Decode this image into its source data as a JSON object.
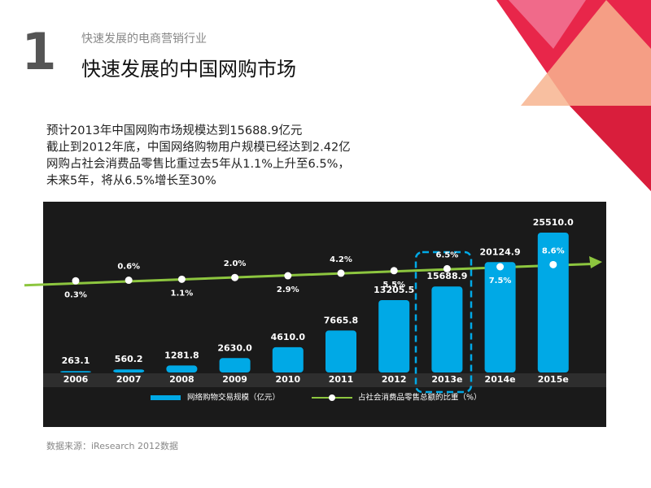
{
  "header": {
    "number": "1",
    "subtitle": "快速发展的电商营销行业",
    "title": "快速发展的中国网购市场"
  },
  "bullets": [
    "预计2013年中国网购市场规模达到15688.9亿元",
    "截止到2012年底，中国网络购物用户规模已经达到2.42亿",
    "网购占社会消费品零售比重过去5年从1.1%上升至6.5%，",
    "未来5年，将从6.5%增长至30%"
  ],
  "chart_data": {
    "type": "bar_line",
    "categories": [
      "2006",
      "2007",
      "2008",
      "2009",
      "2010",
      "2011",
      "2012",
      "2013e",
      "2014e",
      "2015e"
    ],
    "series": [
      {
        "name": "网络购物交易规模（亿元）",
        "color": "#00a9e6",
        "type": "bar",
        "values": [
          263.1,
          560.2,
          1281.8,
          2630.0,
          4610.0,
          7665.8,
          13205.5,
          15688.9,
          20124.9,
          25510.0
        ],
        "value_labels": [
          "263.1",
          "560.2",
          "1281.8",
          "2630.0",
          "4610.0",
          "7665.8",
          "13205.5",
          "15688.9",
          "20124.9",
          "25510.0"
        ]
      },
      {
        "name": "占社会消费品零售总额的比重（%）",
        "color": "#8dc63f",
        "type": "line",
        "values": [
          0.3,
          0.6,
          1.1,
          2.0,
          2.9,
          4.2,
          5.5,
          6.5,
          7.5,
          8.6
        ],
        "value_labels": [
          "0.3%",
          "0.6%",
          "1.1%",
          "2.0%",
          "2.9%",
          "4.2%",
          "5.5%",
          "6.5%",
          "7.5%",
          "8.6%"
        ]
      }
    ]
  },
  "source": "数据来源：iResearch 2012数据"
}
